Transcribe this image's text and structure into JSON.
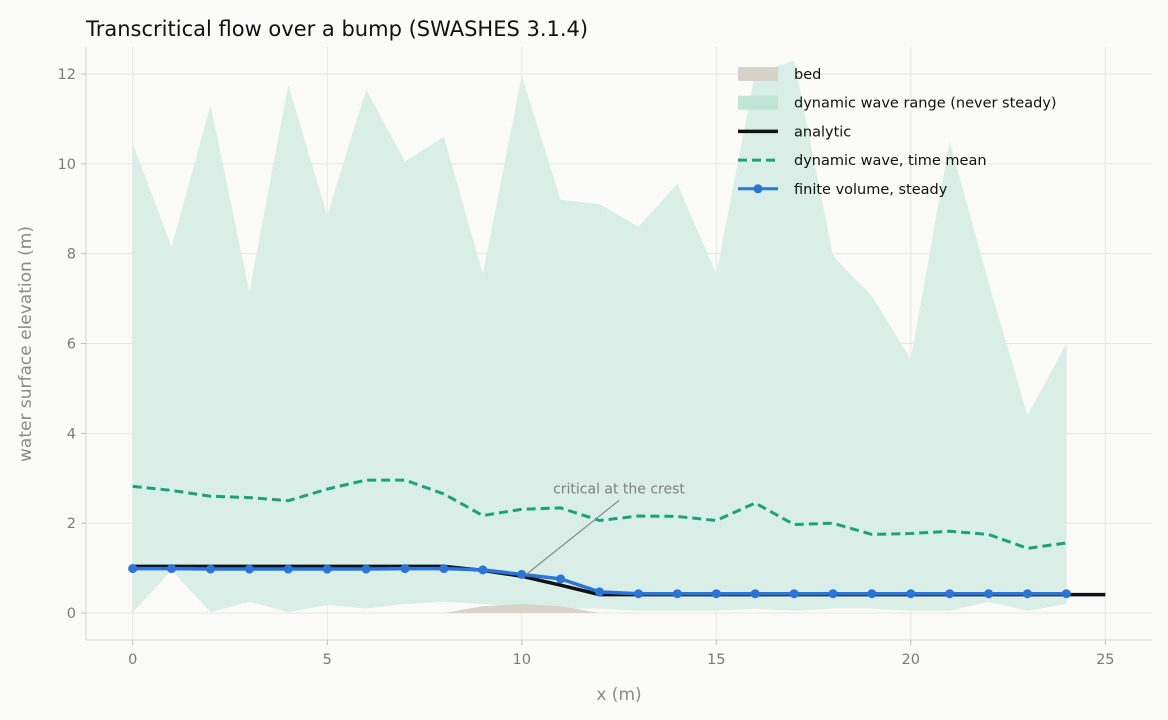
{
  "chart_data": {
    "type": "line",
    "title": "Transcritical flow over a bump (SWASHES 3.1.4)",
    "xlabel": "x (m)",
    "ylabel": "water surface elevation (m)",
    "xlim": [
      -1.2,
      26.2
    ],
    "ylim": [
      -0.6,
      12.6
    ],
    "xticks": [
      0,
      5,
      10,
      15,
      20,
      25
    ],
    "yticks": [
      0,
      2,
      4,
      6,
      8,
      10,
      12
    ],
    "grid": true,
    "legend_position": "top-right",
    "colors": {
      "bed": "#d8d3c8",
      "range": "#d8eee6",
      "analytic": "#111111",
      "mean": "#1aa37a",
      "fv": "#2a75d6",
      "annotation": "#8a8a8a"
    },
    "series": [
      {
        "name": "bed",
        "kind": "area",
        "x": [
          0,
          8,
          9,
          10,
          11,
          12,
          25
        ],
        "y": [
          0,
          0,
          0.15,
          0.2,
          0.15,
          0,
          0
        ]
      },
      {
        "name": "dynamic wave range (never steady)",
        "kind": "band",
        "x": [
          0,
          1,
          2,
          3,
          4,
          5,
          6,
          7,
          8,
          9,
          10,
          11,
          12,
          13,
          14,
          15,
          16,
          17,
          18,
          19,
          20,
          21,
          22,
          23,
          24
        ],
        "upper": [
          10.45,
          8.15,
          11.3,
          7.15,
          11.75,
          8.85,
          11.65,
          10.05,
          10.6,
          7.55,
          11.95,
          9.2,
          9.1,
          8.6,
          9.55,
          7.55,
          12.0,
          12.3,
          7.95,
          7.05,
          5.65,
          10.5,
          7.35,
          4.4,
          6.0
        ],
        "lower": [
          0.02,
          0.95,
          0.02,
          0.25,
          0.02,
          0.18,
          0.1,
          0.2,
          0.25,
          0.2,
          0.15,
          0.1,
          0.1,
          0.05,
          0.05,
          0.05,
          0.1,
          0.05,
          0.1,
          0.1,
          0.05,
          0.05,
          0.25,
          0.05,
          0.2
        ]
      },
      {
        "name": "analytic",
        "kind": "line",
        "x": [
          0,
          8,
          9,
          10,
          11,
          12,
          25
        ],
        "y": [
          1.04,
          1.04,
          0.95,
          0.82,
          0.62,
          0.41,
          0.41
        ]
      },
      {
        "name": "dynamic wave, time mean",
        "kind": "dashed-line",
        "x": [
          0,
          1,
          2,
          3,
          4,
          5,
          6,
          7,
          8,
          9,
          10,
          11,
          12,
          13,
          14,
          15,
          16,
          17,
          18,
          19,
          20,
          21,
          22,
          23,
          24
        ],
        "y": [
          2.82,
          2.73,
          2.6,
          2.57,
          2.5,
          2.76,
          2.96,
          2.96,
          2.65,
          2.17,
          2.31,
          2.34,
          2.06,
          2.16,
          2.15,
          2.06,
          2.45,
          1.97,
          2.0,
          1.75,
          1.77,
          1.82,
          1.75,
          1.44,
          1.56
        ]
      },
      {
        "name": "finite volume, steady",
        "kind": "line-markers",
        "x": [
          0,
          1,
          2,
          3,
          4,
          5,
          6,
          7,
          8,
          9,
          10,
          11,
          12,
          13,
          14,
          15,
          16,
          17,
          18,
          19,
          20,
          21,
          22,
          23,
          24
        ],
        "y": [
          0.99,
          0.99,
          0.98,
          0.98,
          0.98,
          0.98,
          0.98,
          0.99,
          0.99,
          0.96,
          0.86,
          0.76,
          0.47,
          0.43,
          0.43,
          0.43,
          0.43,
          0.43,
          0.43,
          0.43,
          0.43,
          0.43,
          0.43,
          0.43,
          0.43
        ]
      }
    ],
    "annotations": [
      {
        "text": "critical at the crest",
        "xy": [
          10.1,
          0.85
        ],
        "xytext": [
          12.5,
          2.75
        ]
      }
    ]
  }
}
